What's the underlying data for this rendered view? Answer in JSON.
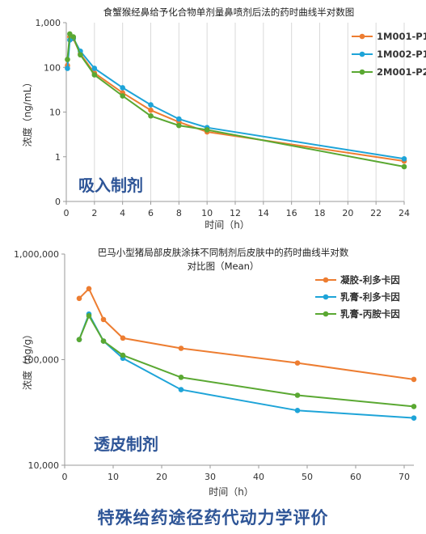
{
  "page": {
    "footer_title": "特殊给药途径药代动力学评价"
  },
  "chart_data": [
    {
      "type": "line",
      "title": "食蟹猴经鼻给予化合物单剂量鼻喷剂后法的药时曲线半对数图",
      "xlabel": "时间（h）",
      "ylabel": "浓度（ng/mL）",
      "annotation": "吸入制剂",
      "xlim": [
        0,
        24
      ],
      "xticks": [
        0,
        2,
        4,
        6,
        8,
        10,
        12,
        14,
        16,
        18,
        20,
        22,
        24
      ],
      "ylim": [
        0.1,
        1000
      ],
      "yscale": "log",
      "yticks": [
        0.1,
        1,
        10,
        100,
        1000
      ],
      "yticklabels": [
        "0",
        "1",
        "10",
        "100",
        "1,000"
      ],
      "grid": "vertical",
      "legend": "top-right",
      "series": [
        {
          "name": "1M001-P1",
          "color": "#ed7d31",
          "x": [
            0.083,
            0.25,
            0.5,
            1,
            2,
            4,
            6,
            8,
            10,
            24
          ],
          "y": [
            110,
            480,
            440,
            200,
            75,
            27,
            11,
            6,
            3.6,
            0.8
          ]
        },
        {
          "name": "1M002-P1",
          "color": "#1ea4d8",
          "x": [
            0.083,
            0.25,
            0.5,
            1,
            2,
            4,
            6,
            8,
            10,
            24
          ],
          "y": [
            95,
            410,
            450,
            230,
            95,
            35,
            14.5,
            7,
            4.5,
            0.9
          ]
        },
        {
          "name": "2M001-P2",
          "color": "#5aa832",
          "x": [
            0.083,
            0.25,
            0.5,
            1,
            2,
            4,
            6,
            8,
            10,
            24
          ],
          "y": [
            150,
            560,
            480,
            190,
            68,
            23,
            8.2,
            5,
            4,
            0.6
          ]
        }
      ]
    },
    {
      "type": "line",
      "title": "巴马小型猪局部皮肤涂抹不同制剂后皮肤中的药时曲线半对数",
      "subtitle": "对比图（Mean）",
      "xlabel": "时间（h）",
      "ylabel": "浓度（ng/g）",
      "annotation": "透皮制剂",
      "xlim": [
        0,
        72
      ],
      "xticks": [
        0,
        10,
        20,
        30,
        40,
        50,
        60,
        70
      ],
      "ylim": [
        10000,
        1000000
      ],
      "yscale": "log",
      "yticks": [
        10000,
        100000,
        1000000
      ],
      "yticklabels": [
        "10,000",
        "100,000",
        "1,000,000"
      ],
      "grid": "none",
      "legend": "top-right",
      "series": [
        {
          "name": "凝胶-利多卡因",
          "color": "#ed7d31",
          "x": [
            3,
            5,
            8,
            12,
            24,
            48,
            72
          ],
          "y": [
            380000,
            470000,
            240000,
            160000,
            128000,
            93000,
            65000
          ]
        },
        {
          "name": "乳膏-利多卡因",
          "color": "#1ea4d8",
          "x": [
            3,
            5,
            8,
            12,
            24,
            48,
            72
          ],
          "y": [
            155000,
            270000,
            150000,
            103000,
            52000,
            33000,
            28000
          ]
        },
        {
          "name": "乳膏-丙胺卡因",
          "color": "#5aa832",
          "x": [
            3,
            5,
            8,
            12,
            24,
            48,
            72
          ],
          "y": [
            155000,
            260000,
            150000,
            110000,
            68000,
            46000,
            36000
          ]
        }
      ]
    }
  ]
}
